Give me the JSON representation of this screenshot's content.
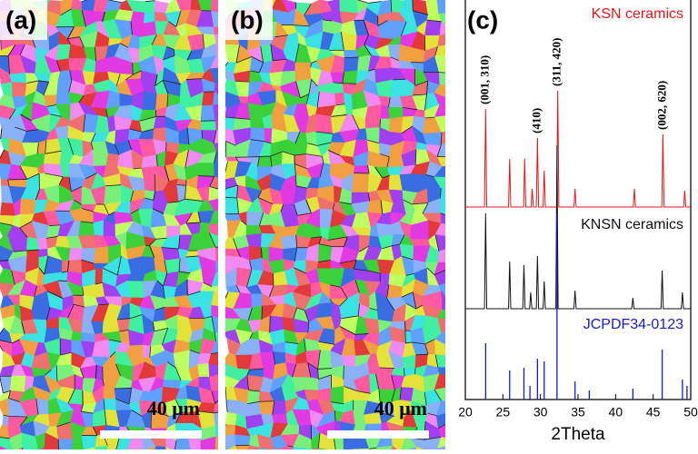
{
  "panels": [
    {
      "label": "(a)",
      "scale": "40 μm"
    },
    {
      "label": "(b)",
      "scale": "40 μm"
    }
  ],
  "chart_data": {
    "type": "line",
    "panel_label": "(c)",
    "xlabel": "2Theta",
    "xlim": [
      20,
      50
    ],
    "xticks": [
      20,
      25,
      30,
      35,
      40,
      45,
      50
    ],
    "ylim": [
      0,
      440
    ],
    "series": [
      {
        "name": "KSN ceramics",
        "color": "#e8141a",
        "x": [
          20,
          22.55,
          22.7,
          22.85,
          25.75,
          25.9,
          26.05,
          27.75,
          27.9,
          28.05,
          28.75,
          28.9,
          29.05,
          29.45,
          29.6,
          29.75,
          30.35,
          30.5,
          30.65,
          32.15,
          32.3,
          32.45,
          34.45,
          34.6,
          34.75,
          42.35,
          42.5,
          42.65,
          46.15,
          46.3,
          46.45,
          49.05,
          49.2,
          49.35,
          50
        ],
        "values": [
          212,
          212,
          320,
          212,
          212,
          265,
          212,
          212,
          265,
          212,
          212,
          232,
          212,
          212,
          288,
          212,
          212,
          252,
          212,
          212,
          340,
          212,
          212,
          232,
          212,
          212,
          232,
          212,
          212,
          292,
          212,
          212,
          230,
          212,
          212
        ]
      },
      {
        "name": "KNSN ceramics",
        "color": "#111111",
        "x": [
          20,
          22.55,
          22.7,
          22.85,
          25.75,
          25.9,
          26.05,
          27.65,
          27.8,
          27.95,
          28.55,
          28.7,
          28.85,
          29.45,
          29.6,
          29.75,
          30.35,
          30.5,
          30.65,
          32.05,
          32.2,
          32.35,
          34.45,
          34.6,
          34.75,
          42.15,
          42.3,
          42.45,
          46.05,
          46.2,
          46.35,
          48.75,
          48.9,
          49.05,
          50
        ],
        "values": [
          100,
          100,
          205,
          100,
          100,
          152,
          100,
          100,
          148,
          100,
          100,
          118,
          100,
          100,
          158,
          100,
          100,
          130,
          100,
          100,
          280,
          100,
          100,
          120,
          100,
          100,
          112,
          100,
          100,
          142,
          100,
          100,
          118,
          100,
          100
        ]
      },
      {
        "name": "JCPDF34-0123",
        "color": "#1a1acc",
        "sticks": true,
        "x": [
          22.7,
          25.9,
          27.8,
          28.6,
          29.6,
          30.5,
          32.2,
          34.6,
          36.5,
          42.3,
          46.2,
          48.9,
          49.5
        ],
        "values": [
          62,
          32,
          35,
          15,
          45,
          42,
          205,
          20,
          10,
          12,
          55,
          22,
          15
        ]
      }
    ],
    "annotations": [
      {
        "text": "(001, 310)",
        "x": 22.7,
        "y": 325
      },
      {
        "text": "(410)",
        "x": 29.6,
        "y": 293
      },
      {
        "text": "(311, 420)",
        "x": 32.3,
        "y": 345
      },
      {
        "text": "(002, 620)",
        "x": 46.3,
        "y": 297
      }
    ]
  }
}
